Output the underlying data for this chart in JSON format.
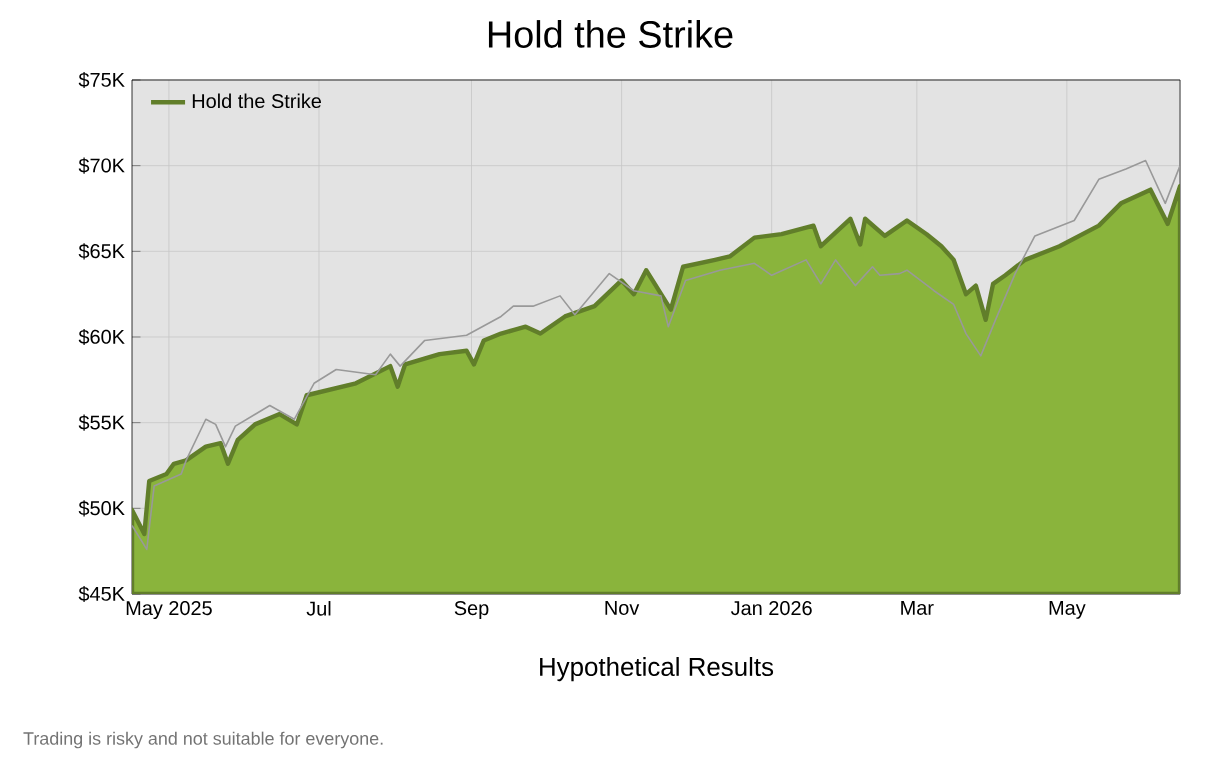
{
  "chart_data": {
    "type": "area",
    "title": "Hold the Strike",
    "xlabel": "Hypothetical Results",
    "annotations": [
      "Trading is risky and not suitable for everyone."
    ],
    "xlim": [
      "2025-04-16",
      "2026-06-16"
    ],
    "xticks": [
      {
        "value": "2025-05-01",
        "label": "May 2025"
      },
      {
        "value": "2025-07-01",
        "label": "Jul"
      },
      {
        "value": "2025-09-01",
        "label": "Sep"
      },
      {
        "value": "2025-11-01",
        "label": "Nov"
      },
      {
        "value": "2026-01-01",
        "label": "Jan 2026"
      },
      {
        "value": "2026-03-01",
        "label": "Mar"
      },
      {
        "value": "2026-05-01",
        "label": "May"
      }
    ],
    "ylim": [
      45000,
      75000
    ],
    "yticks": [
      {
        "value": 45000,
        "label": "$45K"
      },
      {
        "value": 50000,
        "label": "$50K"
      },
      {
        "value": 55000,
        "label": "$55K"
      },
      {
        "value": 60000,
        "label": "$60K"
      },
      {
        "value": 65000,
        "label": "$65K"
      },
      {
        "value": 70000,
        "label": "$70K"
      },
      {
        "value": 75000,
        "label": "$75K"
      }
    ],
    "grid": true,
    "legend": "top left",
    "marker": "none",
    "line_style": "solid",
    "series": [
      {
        "name": "Hold the Strike",
        "color": "#8ab43c",
        "x": [
          "2025-04-16",
          "2025-04-21",
          "2025-04-23",
          "2025-04-30",
          "2025-05-03",
          "2025-05-08",
          "2025-05-16",
          "2025-05-22",
          "2025-05-25",
          "2025-05-29",
          "2025-06-05",
          "2025-06-15",
          "2025-06-22",
          "2025-06-26",
          "2025-07-16",
          "2025-07-30",
          "2025-08-02",
          "2025-08-05",
          "2025-08-19",
          "2025-08-30",
          "2025-09-02",
          "2025-09-06",
          "2025-09-13",
          "2025-09-18",
          "2025-09-23",
          "2025-09-29",
          "2025-10-09",
          "2025-10-21",
          "2025-11-01",
          "2025-11-06",
          "2025-11-11",
          "2025-11-21",
          "2025-11-26",
          "2025-12-09",
          "2025-12-15",
          "2025-12-25",
          "2026-01-05",
          "2026-01-18",
          "2026-01-21",
          "2026-02-02",
          "2026-02-06",
          "2026-02-08",
          "2026-02-16",
          "2026-02-25",
          "2026-03-05",
          "2026-03-11",
          "2026-03-16",
          "2026-03-21",
          "2026-03-25",
          "2026-03-29",
          "2026-04-01",
          "2026-04-06",
          "2026-04-14",
          "2026-04-28",
          "2026-05-14",
          "2026-05-23",
          "2026-06-04",
          "2026-06-11",
          "2026-06-16"
        ],
        "values": [
          49900,
          48500,
          51600,
          52000,
          52600,
          52800,
          53600,
          53800,
          52600,
          54000,
          54900,
          55500,
          54900,
          56600,
          57300,
          58300,
          57100,
          58400,
          59000,
          59200,
          58400,
          59800,
          60200,
          60400,
          60600,
          60200,
          61200,
          61800,
          63300,
          62500,
          63900,
          61600,
          64100,
          64500,
          64700,
          65800,
          66000,
          66500,
          65300,
          66900,
          65400,
          66900,
          65900,
          66800,
          66000,
          65300,
          64500,
          62500,
          63000,
          61000,
          63100,
          63600,
          64500,
          65300,
          66500,
          67800,
          68600,
          66600,
          68800
        ]
      },
      {
        "type": "line",
        "color": "#999999",
        "x": [
          "2025-04-16",
          "2025-04-22",
          "2025-04-25",
          "2025-05-06",
          "2025-05-08",
          "2025-05-16",
          "2025-05-20",
          "2025-05-24",
          "2025-05-28",
          "2025-06-11",
          "2025-06-21",
          "2025-06-29",
          "2025-07-08",
          "2025-07-24",
          "2025-07-30",
          "2025-08-03",
          "2025-08-13",
          "2025-08-30",
          "2025-09-13",
          "2025-09-18",
          "2025-09-26",
          "2025-10-07",
          "2025-10-13",
          "2025-10-27",
          "2025-11-06",
          "2025-11-17",
          "2025-11-20",
          "2025-11-27",
          "2025-12-11",
          "2025-12-25",
          "2026-01-01",
          "2026-01-15",
          "2026-01-21",
          "2026-01-27",
          "2026-02-04",
          "2026-02-11",
          "2026-02-14",
          "2026-02-22",
          "2026-02-25",
          "2026-03-08",
          "2026-03-16",
          "2026-03-21",
          "2026-03-27",
          "2026-04-02",
          "2026-04-10",
          "2026-04-18",
          "2026-05-04",
          "2026-05-14",
          "2026-05-25",
          "2026-06-02",
          "2026-06-10",
          "2026-06-16"
        ],
        "values": [
          49000,
          47600,
          51300,
          52000,
          52800,
          55200,
          54900,
          53600,
          54800,
          56000,
          55200,
          57300,
          58100,
          57800,
          59000,
          58300,
          59800,
          60100,
          61200,
          61800,
          61800,
          62400,
          61300,
          63700,
          62700,
          62400,
          60600,
          63300,
          63900,
          64300,
          63600,
          64500,
          63100,
          64500,
          63000,
          64100,
          63600,
          63700,
          63900,
          62700,
          61900,
          60200,
          58900,
          61000,
          63700,
          65900,
          66800,
          69200,
          69800,
          70300,
          67800,
          70000
        ]
      }
    ]
  }
}
